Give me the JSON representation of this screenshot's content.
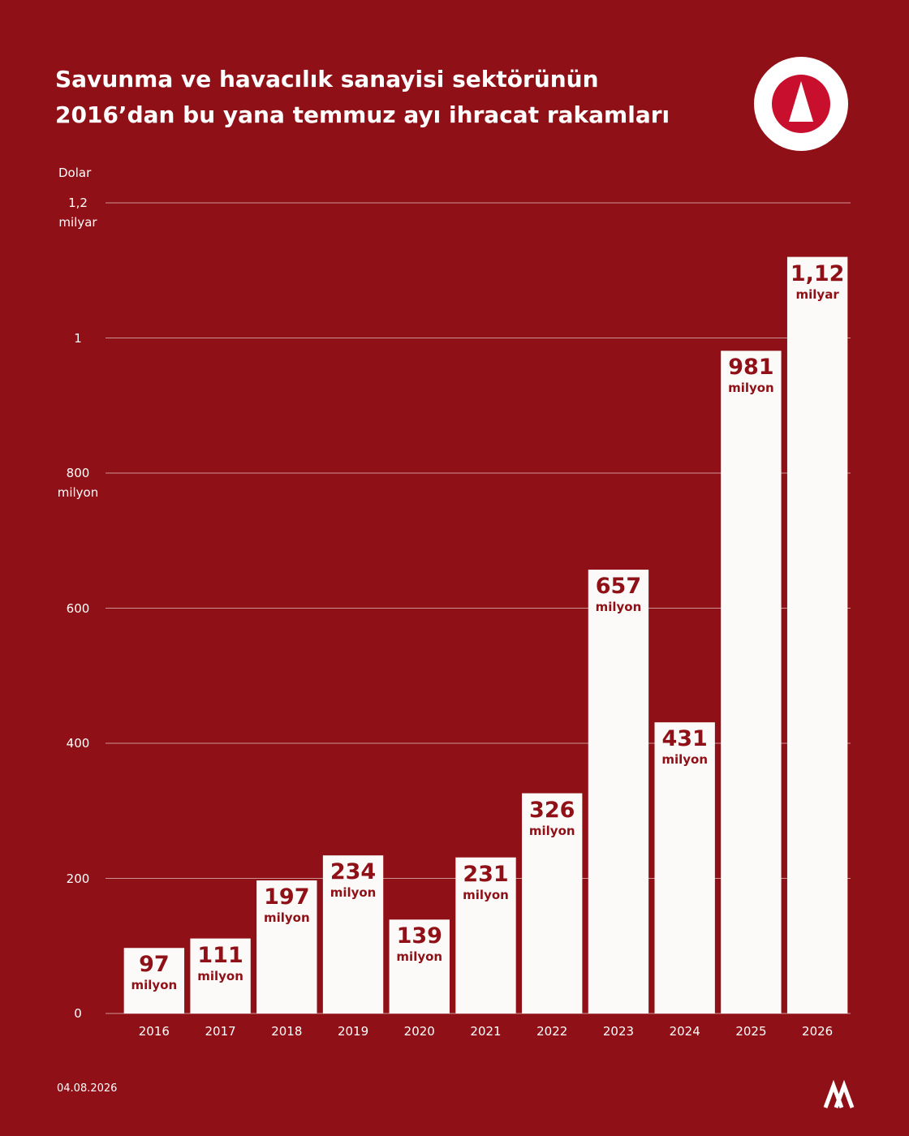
{
  "chart_data": {
    "type": "bar",
    "title": "Savunma ve havacılık sanayisi sektörünün 2016’dan bu yana temmuz ayı ihracat rakamları",
    "y_label": "Dolar",
    "date": "04.08.2026",
    "categories": [
      "2016",
      "2017",
      "2018",
      "2019",
      "2020",
      "2021",
      "2022",
      "2023",
      "2024",
      "2025",
      "2026"
    ],
    "values": [
      97,
      111,
      197,
      234,
      139,
      231,
      326,
      657,
      431,
      981,
      1120
    ],
    "value_labels": [
      "97 milyon",
      "111 milyon",
      "197 milyon",
      "234 milyon",
      "139 milyon",
      "231 milyon",
      "326 milyon",
      "657 milyon",
      "431 milyon",
      "981 milyon",
      "1,12 milyar"
    ],
    "color": "#fbfaf8",
    "ylim": [
      0,
      1200
    ],
    "yticks": [
      0,
      200,
      400,
      600,
      {
        "value": 800,
        "label": "800 milyon"
      },
      {
        "value": 1000,
        "label": "1"
      },
      {
        "value": 1200,
        "label": "1,2 milyar"
      }
    ],
    "grid": true
  }
}
